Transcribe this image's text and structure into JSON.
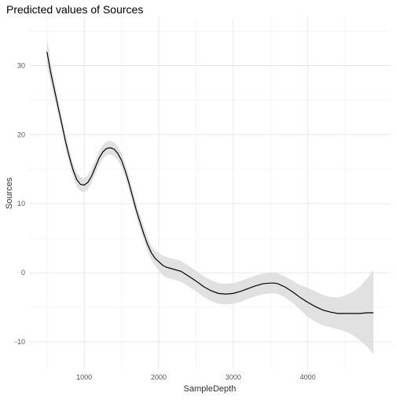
{
  "chart_data": {
    "type": "line",
    "title": "Predicted values of Sources",
    "xlabel": "SampleDepth",
    "ylabel": "Sources",
    "xlim": [
      260,
      5110
    ],
    "ylim": [
      -14,
      37
    ],
    "xticks": [
      1000,
      2000,
      3000,
      4000
    ],
    "yticks": [
      -10,
      0,
      10,
      20,
      30
    ],
    "grid": true,
    "legend": "none",
    "series": [
      {
        "x": [
          500,
          550,
          600,
          650,
          700,
          750,
          800,
          850,
          900,
          950,
          1000,
          1050,
          1100,
          1150,
          1200,
          1250,
          1300,
          1350,
          1400,
          1450,
          1500,
          1550,
          1600,
          1650,
          1700,
          1750,
          1800,
          1850,
          1900,
          1950,
          2000,
          2050,
          2100,
          2200,
          2300,
          2400,
          2500,
          2600,
          2700,
          2800,
          2900,
          3000,
          3100,
          3200,
          3300,
          3400,
          3500,
          3550,
          3600,
          3700,
          3800,
          3900,
          4000,
          4100,
          4200,
          4300,
          4400,
          4500,
          4600,
          4700,
          4800,
          4880
        ],
        "y": [
          32.0,
          29.0,
          26.5,
          24.0,
          21.5,
          19.0,
          16.8,
          14.9,
          13.5,
          12.8,
          12.7,
          13.1,
          14.0,
          15.3,
          16.6,
          17.5,
          18.0,
          18.1,
          17.9,
          17.3,
          16.3,
          14.8,
          13.0,
          11.0,
          9.0,
          7.3,
          5.6,
          4.1,
          2.9,
          2.1,
          1.6,
          1.1,
          0.8,
          0.5,
          0.2,
          -0.5,
          -1.2,
          -2.0,
          -2.6,
          -3.0,
          -3.1,
          -3.0,
          -2.7,
          -2.3,
          -1.9,
          -1.6,
          -1.5,
          -1.5,
          -1.6,
          -2.1,
          -2.8,
          -3.6,
          -4.3,
          -4.9,
          -5.4,
          -5.7,
          -5.9,
          -5.9,
          -5.9,
          -5.9,
          -5.8,
          -5.8
        ],
        "ci_lower": [
          30.0,
          27.5,
          25.2,
          22.9,
          20.5,
          18.0,
          15.8,
          13.9,
          12.5,
          11.8,
          11.7,
          12.1,
          13.0,
          14.3,
          15.6,
          16.5,
          17.0,
          17.1,
          16.9,
          16.3,
          15.3,
          13.8,
          12.0,
          10.0,
          8.0,
          6.3,
          4.6,
          3.1,
          1.9,
          1.0,
          0.3,
          -0.3,
          -0.7,
          -1.0,
          -1.3,
          -2.0,
          -2.7,
          -3.5,
          -4.1,
          -4.5,
          -4.6,
          -4.5,
          -4.2,
          -3.8,
          -3.4,
          -3.1,
          -3.0,
          -3.0,
          -3.1,
          -3.6,
          -4.4,
          -5.4,
          -6.4,
          -7.1,
          -7.6,
          -7.9,
          -8.2,
          -8.5,
          -9.0,
          -9.8,
          -10.8,
          -11.8
        ],
        "ci_upper": [
          34.0,
          30.5,
          27.8,
          25.1,
          22.5,
          20.0,
          17.8,
          15.9,
          14.5,
          13.8,
          13.7,
          14.1,
          15.0,
          16.3,
          17.6,
          18.5,
          19.0,
          19.1,
          18.9,
          18.3,
          17.3,
          15.8,
          14.0,
          12.0,
          10.0,
          8.3,
          6.6,
          5.1,
          3.9,
          3.2,
          2.9,
          2.5,
          2.3,
          2.0,
          1.7,
          1.0,
          0.3,
          -0.5,
          -1.1,
          -1.5,
          -1.6,
          -1.5,
          -1.2,
          -0.8,
          -0.4,
          -0.1,
          0.0,
          0.0,
          -0.1,
          -0.6,
          -1.2,
          -1.8,
          -2.2,
          -2.7,
          -3.2,
          -3.5,
          -3.6,
          -3.3,
          -2.8,
          -2.0,
          -0.8,
          0.4
        ]
      }
    ]
  }
}
